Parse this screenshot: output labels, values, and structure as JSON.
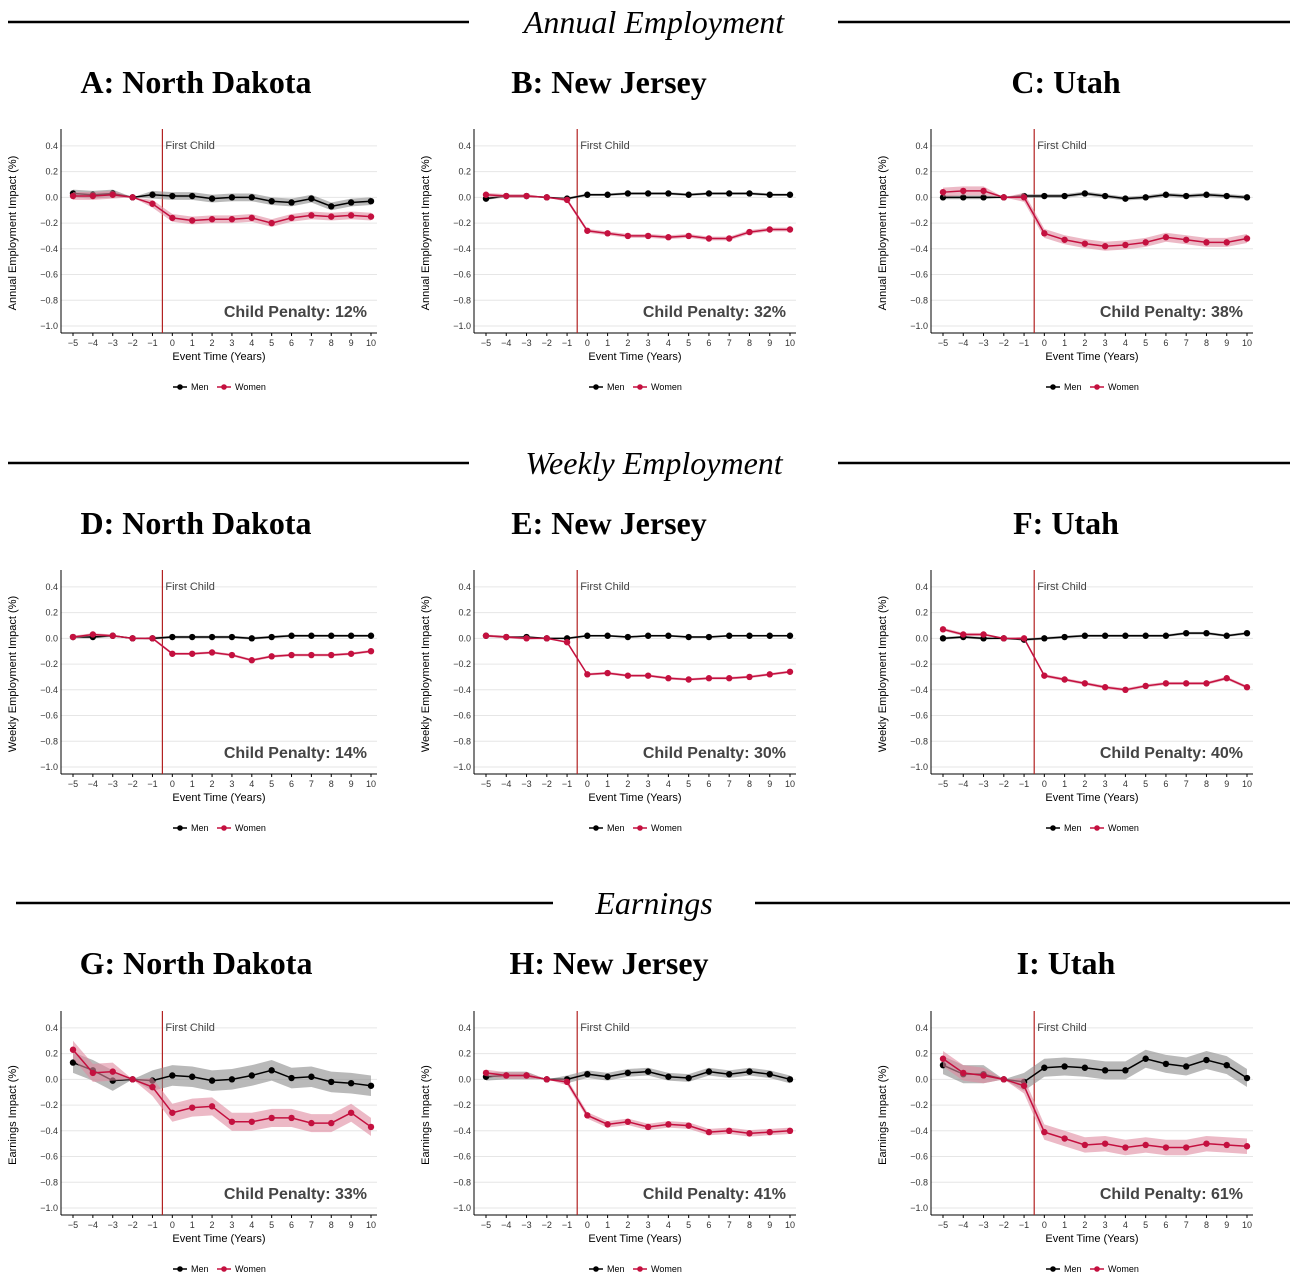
{
  "sections": [
    {
      "title": "Annual Employment",
      "ylabel": "Annual Employment Impact (%)"
    },
    {
      "title": "Weekly Employment",
      "ylabel": "Weekly Employment Impact (%)"
    },
    {
      "title": "Earnings",
      "ylabel": "Earnings Impact (%)"
    }
  ],
  "common": {
    "xlabel": "Event Time (Years)",
    "vline_label": "First Child",
    "legend": [
      "Men",
      "Women"
    ],
    "colors": {
      "men": "#000000",
      "women": "#c4103f",
      "men_band": "#8a8a8a",
      "women_band": "#e08aa0",
      "vline": "#b22222"
    }
  },
  "chart_data": [
    {
      "panel": "A: North Dakota",
      "type": "line",
      "x": [
        -5,
        -4,
        -3,
        -2,
        -1,
        0,
        1,
        2,
        3,
        4,
        5,
        6,
        7,
        8,
        9,
        10
      ],
      "ylim": [
        -1.0,
        0.5
      ],
      "yticks": [
        -1.0,
        -0.8,
        -0.6,
        -0.4,
        -0.2,
        0.0,
        0.2,
        0.4
      ],
      "child_penalty": "Child Penalty: 12%",
      "series": [
        {
          "name": "Men",
          "values": [
            0.03,
            0.02,
            0.03,
            0.0,
            0.02,
            0.01,
            0.01,
            -0.01,
            0.0,
            0.0,
            -0.03,
            -0.04,
            -0.01,
            -0.07,
            -0.04,
            -0.03
          ],
          "band": 0.03
        },
        {
          "name": "Women",
          "values": [
            0.01,
            0.01,
            0.02,
            0.0,
            -0.05,
            -0.16,
            -0.18,
            -0.17,
            -0.17,
            -0.16,
            -0.2,
            -0.16,
            -0.14,
            -0.15,
            -0.14,
            -0.15
          ],
          "band": 0.03
        }
      ]
    },
    {
      "panel": "B: New Jersey",
      "type": "line",
      "x": [
        -5,
        -4,
        -3,
        -2,
        -1,
        0,
        1,
        2,
        3,
        4,
        5,
        6,
        7,
        8,
        9,
        10
      ],
      "ylim": [
        -1.0,
        0.5
      ],
      "yticks": [
        -1.0,
        -0.8,
        -0.6,
        -0.4,
        -0.2,
        0.0,
        0.2,
        0.4
      ],
      "child_penalty": "Child Penalty: 32%",
      "series": [
        {
          "name": "Men",
          "values": [
            -0.01,
            0.01,
            0.01,
            0.0,
            -0.01,
            0.02,
            0.02,
            0.03,
            0.03,
            0.03,
            0.02,
            0.03,
            0.03,
            0.03,
            0.02,
            0.02
          ],
          "band": 0.01
        },
        {
          "name": "Women",
          "values": [
            0.02,
            0.01,
            0.01,
            0.0,
            -0.02,
            -0.26,
            -0.28,
            -0.3,
            -0.3,
            -0.31,
            -0.3,
            -0.32,
            -0.32,
            -0.27,
            -0.25,
            -0.25
          ],
          "band": 0.015
        }
      ]
    },
    {
      "panel": "C: Utah",
      "type": "line",
      "x": [
        -5,
        -4,
        -3,
        -2,
        -1,
        0,
        1,
        2,
        3,
        4,
        5,
        6,
        7,
        8,
        9,
        10
      ],
      "ylim": [
        -1.0,
        0.5
      ],
      "yticks": [
        -1.0,
        -0.8,
        -0.6,
        -0.4,
        -0.2,
        0.0,
        0.2,
        0.4
      ],
      "child_penalty": "Child Penalty: 38%",
      "series": [
        {
          "name": "Men",
          "values": [
            0.0,
            0.0,
            0.0,
            0.0,
            0.01,
            0.01,
            0.01,
            0.03,
            0.01,
            -0.01,
            0.0,
            0.02,
            0.01,
            0.02,
            0.01,
            0.0
          ],
          "band": 0.015
        },
        {
          "name": "Women",
          "values": [
            0.04,
            0.05,
            0.05,
            0.0,
            0.0,
            -0.28,
            -0.33,
            -0.36,
            -0.38,
            -0.37,
            -0.35,
            -0.31,
            -0.33,
            -0.35,
            -0.35,
            -0.32
          ],
          "band": 0.035
        }
      ]
    },
    {
      "panel": "D: North Dakota",
      "type": "line",
      "x": [
        -5,
        -4,
        -3,
        -2,
        -1,
        0,
        1,
        2,
        3,
        4,
        5,
        6,
        7,
        8,
        9,
        10
      ],
      "ylim": [
        -1.0,
        0.5
      ],
      "yticks": [
        -1.0,
        -0.8,
        -0.6,
        -0.4,
        -0.2,
        0.0,
        0.2,
        0.4
      ],
      "child_penalty": "Child Penalty: 14%",
      "series": [
        {
          "name": "Men",
          "values": [
            0.01,
            0.01,
            0.02,
            0.0,
            0.0,
            0.01,
            0.01,
            0.01,
            0.01,
            0.0,
            0.01,
            0.02,
            0.02,
            0.02,
            0.02,
            0.02
          ],
          "band": 0.01
        },
        {
          "name": "Women",
          "values": [
            0.01,
            0.03,
            0.02,
            0.0,
            0.0,
            -0.12,
            -0.12,
            -0.11,
            -0.13,
            -0.17,
            -0.14,
            -0.13,
            -0.13,
            -0.13,
            -0.12,
            -0.1
          ],
          "band": 0.01
        }
      ]
    },
    {
      "panel": "E: New Jersey",
      "type": "line",
      "x": [
        -5,
        -4,
        -3,
        -2,
        -1,
        0,
        1,
        2,
        3,
        4,
        5,
        6,
        7,
        8,
        9,
        10
      ],
      "ylim": [
        -1.0,
        0.5
      ],
      "yticks": [
        -1.0,
        -0.8,
        -0.6,
        -0.4,
        -0.2,
        0.0,
        0.2,
        0.4
      ],
      "child_penalty": "Child Penalty: 30%",
      "series": [
        {
          "name": "Men",
          "values": [
            0.02,
            0.01,
            0.01,
            0.0,
            0.0,
            0.02,
            0.02,
            0.01,
            0.02,
            0.02,
            0.01,
            0.01,
            0.02,
            0.02,
            0.02,
            0.02
          ],
          "band": 0.008
        },
        {
          "name": "Women",
          "values": [
            0.02,
            0.01,
            0.0,
            0.0,
            -0.03,
            -0.28,
            -0.27,
            -0.29,
            -0.29,
            -0.31,
            -0.32,
            -0.31,
            -0.31,
            -0.3,
            -0.28,
            -0.26
          ],
          "band": 0.01
        }
      ]
    },
    {
      "panel": "F: Utah",
      "type": "line",
      "x": [
        -5,
        -4,
        -3,
        -2,
        -1,
        0,
        1,
        2,
        3,
        4,
        5,
        6,
        7,
        8,
        9,
        10
      ],
      "ylim": [
        -1.0,
        0.5
      ],
      "yticks": [
        -1.0,
        -0.8,
        -0.6,
        -0.4,
        -0.2,
        0.0,
        0.2,
        0.4
      ],
      "child_penalty": "Child Penalty: 40%",
      "series": [
        {
          "name": "Men",
          "values": [
            0.0,
            0.01,
            0.0,
            0.0,
            -0.01,
            0.0,
            0.01,
            0.02,
            0.02,
            0.02,
            0.02,
            0.02,
            0.04,
            0.04,
            0.02,
            0.04
          ],
          "band": 0.01
        },
        {
          "name": "Women",
          "values": [
            0.07,
            0.03,
            0.03,
            0.0,
            0.0,
            -0.29,
            -0.32,
            -0.35,
            -0.38,
            -0.4,
            -0.37,
            -0.35,
            -0.35,
            -0.35,
            -0.31,
            -0.38
          ],
          "band": 0.012
        }
      ]
    },
    {
      "panel": "G: North Dakota",
      "type": "line",
      "x": [
        -5,
        -4,
        -3,
        -2,
        -1,
        0,
        1,
        2,
        3,
        4,
        5,
        6,
        7,
        8,
        9,
        10
      ],
      "ylim": [
        -1.0,
        0.5
      ],
      "yticks": [
        -1.0,
        -0.8,
        -0.6,
        -0.4,
        -0.2,
        0.0,
        0.2,
        0.4
      ],
      "child_penalty": "Child Penalty: 33%",
      "series": [
        {
          "name": "Men",
          "values": [
            0.13,
            0.07,
            -0.01,
            0.0,
            -0.01,
            0.03,
            0.02,
            -0.01,
            0.0,
            0.03,
            0.07,
            0.01,
            0.02,
            -0.02,
            -0.03,
            -0.05
          ],
          "band": 0.08
        },
        {
          "name": "Women",
          "values": [
            0.23,
            0.05,
            0.06,
            0.0,
            -0.06,
            -0.26,
            -0.22,
            -0.21,
            -0.33,
            -0.33,
            -0.3,
            -0.3,
            -0.34,
            -0.34,
            -0.26,
            -0.37
          ],
          "band": 0.07
        }
      ]
    },
    {
      "panel": "H: New Jersey",
      "type": "line",
      "x": [
        -5,
        -4,
        -3,
        -2,
        -1,
        0,
        1,
        2,
        3,
        4,
        5,
        6,
        7,
        8,
        9,
        10
      ],
      "ylim": [
        -1.0,
        0.5
      ],
      "yticks": [
        -1.0,
        -0.8,
        -0.6,
        -0.4,
        -0.2,
        0.0,
        0.2,
        0.4
      ],
      "child_penalty": "Child Penalty: 41%",
      "series": [
        {
          "name": "Men",
          "values": [
            0.02,
            0.03,
            0.03,
            0.0,
            0.0,
            0.04,
            0.02,
            0.05,
            0.06,
            0.02,
            0.01,
            0.06,
            0.04,
            0.06,
            0.04,
            0.0
          ],
          "band": 0.03
        },
        {
          "name": "Women",
          "values": [
            0.05,
            0.03,
            0.03,
            0.0,
            -0.02,
            -0.28,
            -0.35,
            -0.33,
            -0.37,
            -0.35,
            -0.36,
            -0.41,
            -0.4,
            -0.42,
            -0.41,
            -0.4
          ],
          "band": 0.025
        }
      ]
    },
    {
      "panel": "I: Utah",
      "type": "line",
      "x": [
        -5,
        -4,
        -3,
        -2,
        -1,
        0,
        1,
        2,
        3,
        4,
        5,
        6,
        7,
        8,
        9,
        10
      ],
      "ylim": [
        -1.0,
        0.5
      ],
      "yticks": [
        -1.0,
        -0.8,
        -0.6,
        -0.4,
        -0.2,
        0.0,
        0.2,
        0.4
      ],
      "child_penalty": "Child Penalty: 61%",
      "series": [
        {
          "name": "Men",
          "values": [
            0.11,
            0.04,
            0.04,
            0.0,
            -0.02,
            0.09,
            0.1,
            0.09,
            0.07,
            0.07,
            0.16,
            0.12,
            0.1,
            0.15,
            0.11,
            0.01
          ],
          "band": 0.07
        },
        {
          "name": "Women",
          "values": [
            0.16,
            0.05,
            0.03,
            0.0,
            -0.05,
            -0.41,
            -0.46,
            -0.51,
            -0.5,
            -0.53,
            -0.51,
            -0.53,
            -0.53,
            -0.5,
            -0.51,
            -0.52
          ],
          "band": 0.06
        }
      ]
    }
  ]
}
